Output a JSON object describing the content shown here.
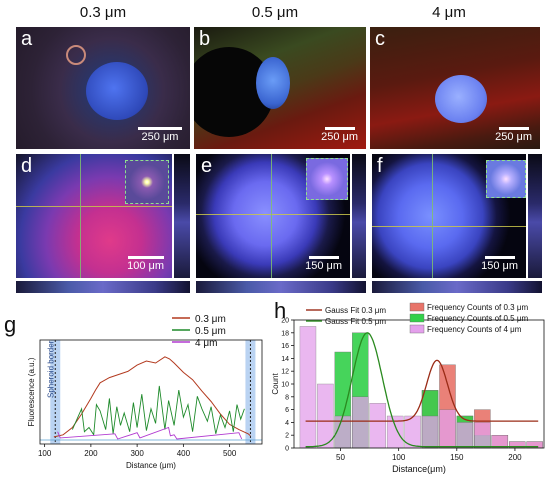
{
  "columns": [
    "0.3 μm",
    "0.5 μm",
    "4 μm"
  ],
  "panels": {
    "a": {
      "label": "a",
      "scale": "250 μm"
    },
    "b": {
      "label": "b",
      "scale": "250 μm"
    },
    "c": {
      "label": "c",
      "scale": "250 μm"
    },
    "d": {
      "label": "d",
      "scale": "100 μm"
    },
    "e": {
      "label": "e",
      "scale": "150 μm"
    },
    "f": {
      "label": "f",
      "scale": "150 μm"
    },
    "g": {
      "label": "g"
    },
    "h": {
      "label": "h"
    }
  },
  "chart_data": [
    {
      "type": "line",
      "panel": "g",
      "xlabel": "Distance (μm)",
      "ylabel": "Fluorescence (a.u.)",
      "xlim": [
        90,
        570
      ],
      "x_ticks": [
        100,
        200,
        300,
        400,
        500
      ],
      "annotation": "Spheroid border",
      "border_x": [
        123,
        545
      ],
      "series": [
        {
          "name": "0.3 μm",
          "color": "#b33a1f",
          "x": [
            120,
            140,
            160,
            180,
            200,
            210,
            220,
            240,
            260,
            280,
            300,
            320,
            340,
            360,
            370,
            380,
            400,
            420,
            440,
            460,
            480,
            500,
            520,
            540,
            545
          ],
          "y": [
            0.03,
            0.05,
            0.12,
            0.25,
            0.4,
            0.48,
            0.55,
            0.6,
            0.63,
            0.66,
            0.72,
            0.76,
            0.74,
            0.8,
            0.78,
            0.74,
            0.65,
            0.58,
            0.47,
            0.37,
            0.25,
            0.15,
            0.1,
            0.06,
            0.04
          ]
        },
        {
          "name": "0.5 μm",
          "color": "#1e8a2a",
          "x": [
            160,
            172,
            180,
            186,
            196,
            206,
            212,
            220,
            232,
            240,
            248,
            256,
            264,
            272,
            284,
            292,
            300,
            310,
            320,
            330,
            340,
            348,
            360,
            368,
            380,
            390,
            400,
            410,
            420,
            430,
            440,
            452,
            460,
            470,
            480,
            490,
            500,
            508,
            516,
            524,
            532
          ],
          "y": [
            0.1,
            0.22,
            0.3,
            0.08,
            0.12,
            0.05,
            0.34,
            0.28,
            0.1,
            0.4,
            0.06,
            0.32,
            0.14,
            0.26,
            0.08,
            0.36,
            0.12,
            0.44,
            0.09,
            0.3,
            0.16,
            0.52,
            0.1,
            0.38,
            0.14,
            0.48,
            0.22,
            0.34,
            0.08,
            0.42,
            0.3,
            0.18,
            0.32,
            0.06,
            0.24,
            0.12,
            0.28,
            0.08,
            0.34,
            0.2,
            0.3
          ]
        },
        {
          "name": "4 μm",
          "color": "#b23ad1",
          "x": [
            128,
            134,
            252,
            258,
            300,
            306,
            368,
            372,
            380,
            386,
            520,
            526
          ],
          "y": [
            0.08,
            0.02,
            0.06,
            0.01,
            0.07,
            0.02,
            0.12,
            0.04,
            0.05,
            0.01,
            0.07,
            0.01
          ]
        }
      ]
    },
    {
      "type": "bar",
      "panel": "h",
      "xlabel": "Distance(μm)",
      "ylabel": "Count",
      "xlim": [
        10,
        225
      ],
      "ylim": [
        0,
        20
      ],
      "x_ticks": [
        50,
        100,
        150,
        200
      ],
      "y_ticks": [
        0,
        2,
        4,
        6,
        8,
        10,
        12,
        14,
        16,
        18,
        20
      ],
      "bin_width": 15,
      "bin_centers": [
        22,
        37,
        52,
        67,
        82,
        97,
        112,
        127,
        142,
        157,
        172,
        187,
        202,
        217
      ],
      "series": [
        {
          "name": "Frequency Counts of 0.3 μm",
          "color": "#e8746a",
          "values": [
            0,
            0,
            0,
            0,
            0,
            0,
            0,
            9,
            13,
            5,
            6,
            2,
            1,
            1
          ]
        },
        {
          "name": "Frequency Counts of 0.5 μm",
          "color": "#33d04a",
          "values": [
            0,
            0,
            15,
            18,
            0,
            0,
            0,
            9,
            0,
            5,
            2,
            0,
            0,
            0
          ]
        },
        {
          "name": "Frequency Counts of 4 μm",
          "color": "#e4a0ec",
          "values": [
            19,
            10,
            5,
            8,
            7,
            5,
            5,
            5,
            6,
            4,
            4,
            2,
            1,
            1
          ]
        }
      ],
      "fits": [
        {
          "name": "Gauss Fit 0.3 μm",
          "color": "#9a2b16",
          "baseline": 4.2,
          "amp": 9.5,
          "center": 133,
          "sigma": 9
        },
        {
          "name": "Gauss Fit 0.5 μm",
          "color": "#2a8a1f",
          "baseline": 0.2,
          "amp": 17.8,
          "center": 73,
          "sigma": 13
        }
      ]
    }
  ]
}
